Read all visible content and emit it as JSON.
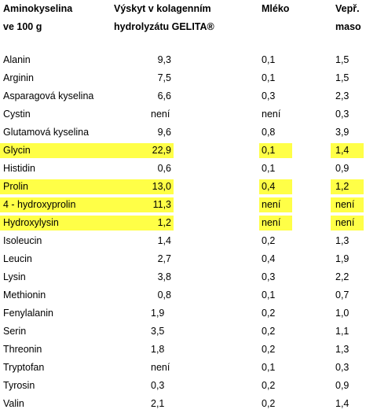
{
  "headers": {
    "aminoacid": [
      "Aminokyselina",
      "ve 100 g"
    ],
    "gelita": [
      "Výskyt v kolagenním",
      "hydrolyzátu GELITA®"
    ],
    "milk": [
      "Mléko"
    ],
    "pork": [
      "Vepř.",
      "maso"
    ]
  },
  "highlight_color": "#ffff47",
  "rows": [
    {
      "name": "Alanin",
      "gelita": "9,3",
      "milk": "0,1",
      "pork": "1,5",
      "highlight": false,
      "gelita_align": "right"
    },
    {
      "name": "Arginin",
      "gelita": "7,5",
      "milk": "0,1",
      "pork": "1,5",
      "highlight": false,
      "gelita_align": "right"
    },
    {
      "name": "Asparagová kyselina",
      "gelita": "6,6",
      "milk": "0,3",
      "pork": "2,3",
      "highlight": false,
      "gelita_align": "right"
    },
    {
      "name": "Cystin",
      "gelita": "není",
      "milk": "není",
      "pork": "0,3",
      "highlight": false,
      "gelita_align": "left"
    },
    {
      "name": "Glutamová kyselina",
      "gelita": "9,6",
      "milk": "0,8",
      "pork": "3,9",
      "highlight": false,
      "gelita_align": "right"
    },
    {
      "name": "Glycin",
      "gelita": "22,9",
      "milk": "0,1",
      "pork": "1,4",
      "highlight": true,
      "gelita_align": "right"
    },
    {
      "name": "Histidin",
      "gelita": "0,6",
      "milk": "0,1",
      "pork": "0,9",
      "highlight": false,
      "gelita_align": "right"
    },
    {
      "name": "Prolin",
      "gelita": "13,0",
      "milk": "0,4",
      "pork": "1,2",
      "highlight": true,
      "gelita_align": "right"
    },
    {
      "name": "4 - hydroxyprolin",
      "gelita": "11,3",
      "milk": "není",
      "pork": "není",
      "highlight": true,
      "gelita_align": "right"
    },
    {
      "name": "Hydroxylysin",
      "gelita": "1,2",
      "milk": "není",
      "pork": "není",
      "highlight": true,
      "gelita_align": "right"
    },
    {
      "name": "Isoleucin",
      "gelita": "1,4",
      "milk": "0,2",
      "pork": "1,3",
      "highlight": false,
      "gelita_align": "right"
    },
    {
      "name": "Leucin",
      "gelita": "2,7",
      "milk": "0,4",
      "pork": "1,9",
      "highlight": false,
      "gelita_align": "right"
    },
    {
      "name": "Lysin",
      "gelita": "3,8",
      "milk": "0,3",
      "pork": "2,2",
      "highlight": false,
      "gelita_align": "right"
    },
    {
      "name": "Methionin",
      "gelita": "0,8",
      "milk": "0,1",
      "pork": "0,7",
      "highlight": false,
      "gelita_align": "right"
    },
    {
      "name": "Fenylalanin",
      "gelita": "1,9",
      "milk": "0,2",
      "pork": "1,0",
      "highlight": false,
      "gelita_align": "left"
    },
    {
      "name": "Serin",
      "gelita": "3,5",
      "milk": "0,2",
      "pork": "1,1",
      "highlight": false,
      "gelita_align": "left"
    },
    {
      "name": "Threonin",
      "gelita": "1,8",
      "milk": "0,2",
      "pork": "1,3",
      "highlight": false,
      "gelita_align": "left"
    },
    {
      "name": "Tryptofan",
      "gelita": "není",
      "milk": "0,1",
      "pork": "0,3",
      "highlight": false,
      "gelita_align": "left"
    },
    {
      "name": "Tyrosin",
      "gelita": "0,3",
      "milk": "0,2",
      "pork": "0,9",
      "highlight": false,
      "gelita_align": "left"
    },
    {
      "name": "Valin",
      "gelita": "2,1",
      "milk": "0,2",
      "pork": "1,4",
      "highlight": false,
      "gelita_align": "left"
    }
  ]
}
